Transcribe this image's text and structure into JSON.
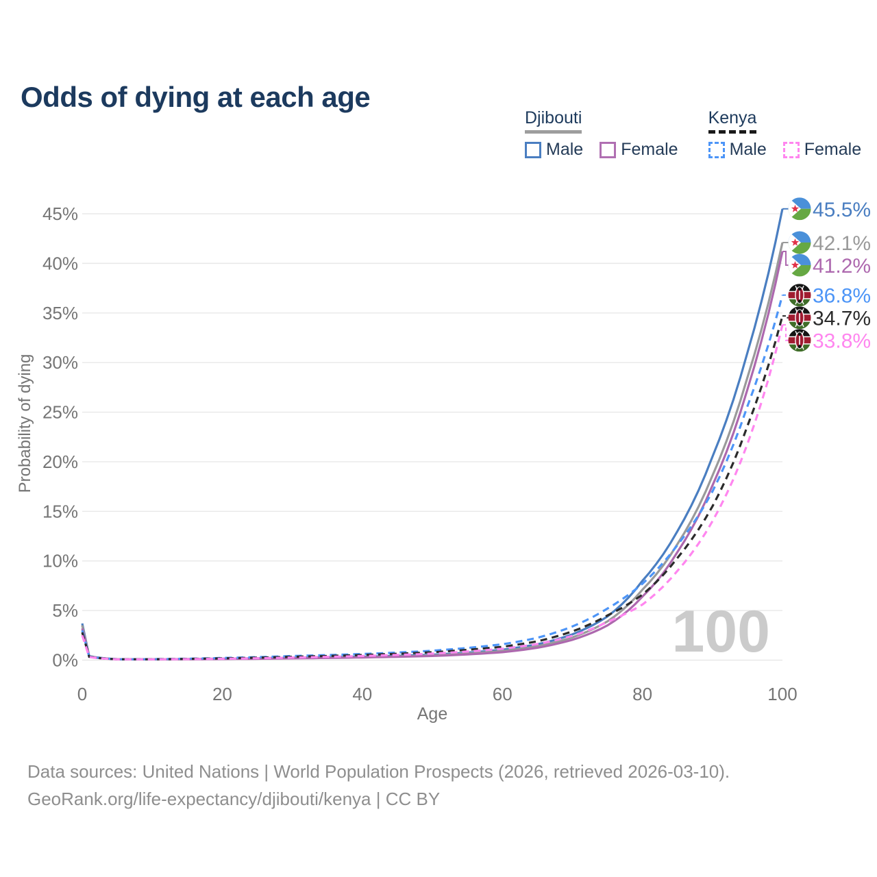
{
  "title": "Odds of dying at each age",
  "watermark": "100",
  "legend": {
    "position": "top-right",
    "groups": [
      {
        "title": "Djibouti",
        "underline_style": "solid",
        "underline_color": "#9e9e9e",
        "items": [
          {
            "label": "Male",
            "color": "#4a7ec1",
            "dashed": false
          },
          {
            "label": "Female",
            "color": "#b06fb2",
            "dashed": false
          }
        ]
      },
      {
        "title": "Kenya",
        "underline_style": "dashed",
        "underline_color": "#1a1a1a",
        "items": [
          {
            "label": "Male",
            "color": "#4d95f7",
            "dashed": true
          },
          {
            "label": "Female",
            "color": "#ff86ef",
            "dashed": true
          }
        ]
      }
    ]
  },
  "chart_data": {
    "type": "line",
    "title": "Odds of dying at each age",
    "xlabel": "Age",
    "ylabel": "Probability of dying",
    "xlim": [
      0,
      100
    ],
    "ylim": [
      0,
      46
    ],
    "grid": "horizontal",
    "x_ticks": [
      0,
      20,
      40,
      60,
      80,
      100
    ],
    "y_ticks": [
      0,
      5,
      10,
      15,
      20,
      25,
      30,
      35,
      40,
      45
    ],
    "y_tick_labels": [
      "0%",
      "5%",
      "10%",
      "15%",
      "20%",
      "25%",
      "30%",
      "35%",
      "40%",
      "45%"
    ],
    "control_ages": [
      0,
      1,
      5,
      10,
      20,
      30,
      40,
      50,
      60,
      65,
      70,
      75,
      80,
      85,
      90,
      95,
      100
    ],
    "series": [
      {
        "name": "Djibouti Male",
        "country": "Djibouti",
        "sex": "Male",
        "color": "#4a7ec1",
        "dashed": false,
        "end_label": "45.5%",
        "end_value": 45.5,
        "values": [
          3.7,
          0.4,
          0.1,
          0.09,
          0.15,
          0.25,
          0.35,
          0.55,
          1.05,
          1.6,
          2.6,
          4.4,
          8.0,
          13.0,
          20.5,
          31.0,
          45.5
        ]
      },
      {
        "name": "Djibouti",
        "country": "Djibouti",
        "sex": "Both",
        "color": "#9a9a9a",
        "dashed": false,
        "end_label": "42.1%",
        "end_value": 42.1,
        "values": [
          3.5,
          0.37,
          0.09,
          0.08,
          0.13,
          0.21,
          0.3,
          0.48,
          0.92,
          1.4,
          2.3,
          3.9,
          7.1,
          11.7,
          18.6,
          28.5,
          42.1
        ]
      },
      {
        "name": "Djibouti Female",
        "country": "Djibouti",
        "sex": "Female",
        "color": "#ad68ae",
        "dashed": false,
        "end_label": "41.2%",
        "end_value": 41.2,
        "values": [
          3.2,
          0.34,
          0.09,
          0.08,
          0.11,
          0.18,
          0.27,
          0.42,
          0.8,
          1.25,
          2.05,
          3.5,
          6.4,
          10.9,
          17.6,
          27.3,
          41.2
        ]
      },
      {
        "name": "Kenya Male",
        "country": "Kenya",
        "sex": "Male",
        "color": "#4d95f7",
        "dashed": true,
        "end_label": "36.8%",
        "end_value": 36.8,
        "values": [
          3.0,
          0.36,
          0.1,
          0.1,
          0.22,
          0.42,
          0.62,
          0.95,
          1.6,
          2.25,
          3.4,
          5.2,
          7.7,
          11.6,
          17.0,
          25.6,
          36.8
        ]
      },
      {
        "name": "Kenya",
        "country": "Kenya",
        "sex": "Both",
        "color": "#2b2b2b",
        "dashed": true,
        "end_label": "34.7%",
        "end_value": 34.7,
        "values": [
          2.8,
          0.34,
          0.09,
          0.09,
          0.18,
          0.34,
          0.52,
          0.8,
          1.35,
          1.9,
          2.9,
          4.5,
          6.6,
          10.3,
          15.5,
          23.6,
          34.7
        ]
      },
      {
        "name": "Kenya Female",
        "country": "Kenya",
        "sex": "Female",
        "color": "#ff86ef",
        "dashed": true,
        "end_label": "33.8%",
        "end_value": 33.8,
        "values": [
          2.5,
          0.31,
          0.08,
          0.08,
          0.14,
          0.26,
          0.42,
          0.66,
          1.15,
          1.62,
          2.45,
          3.85,
          5.6,
          9.0,
          14.0,
          21.8,
          33.8
        ]
      }
    ]
  },
  "colors": {
    "title": "#1c3a5e",
    "tick_text": "#757575",
    "gridline": "#e8e8e8",
    "watermark": "#cbcbcb",
    "footer_text": "#8e8e8e"
  },
  "footer": {
    "line1": "Data sources: United Nations | World Population Prospects (2026, retrieved 2026-03-10).",
    "line2": "GeoRank.org/life-expectancy/djibouti/kenya | CC BY"
  }
}
